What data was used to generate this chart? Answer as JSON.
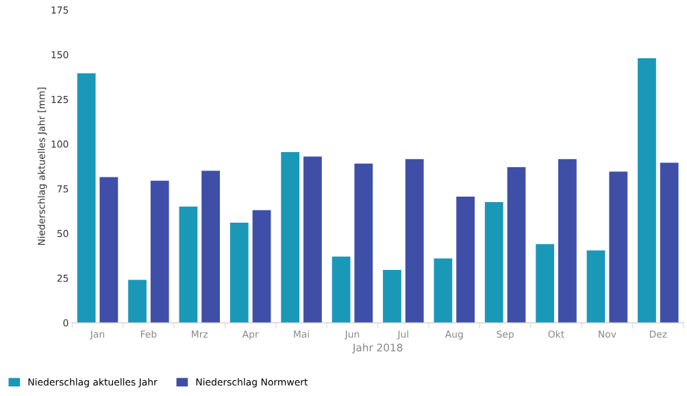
{
  "chart_data": {
    "type": "bar",
    "xlabel": "Jahr 2018",
    "ylabel": "Niederschlag aktuelles Jahr [mm]",
    "categories": [
      "Jan",
      "Feb",
      "Mrz",
      "Apr",
      "Mai",
      "Jun",
      "Jul",
      "Aug",
      "Sep",
      "Okt",
      "Nov",
      "Dez"
    ],
    "series": [
      {
        "name": "Niederschlag aktuelles Jahr",
        "color": "#1a98b8",
        "values": [
          139.5,
          24,
          65,
          56,
          95.5,
          37,
          29.5,
          36,
          67.5,
          44,
          40.5,
          148
        ]
      },
      {
        "name": "Niederschlag Normwert",
        "color": "#3f4fa8",
        "values": [
          81.5,
          79.5,
          85,
          63,
          93,
          89,
          91.5,
          70.5,
          87,
          91.5,
          84.5,
          89.5
        ]
      }
    ],
    "ylim": [
      0,
      175
    ],
    "yticks": [
      0,
      25,
      50,
      75,
      100,
      125,
      150,
      175
    ],
    "grid": false,
    "legend": "bottom left"
  }
}
